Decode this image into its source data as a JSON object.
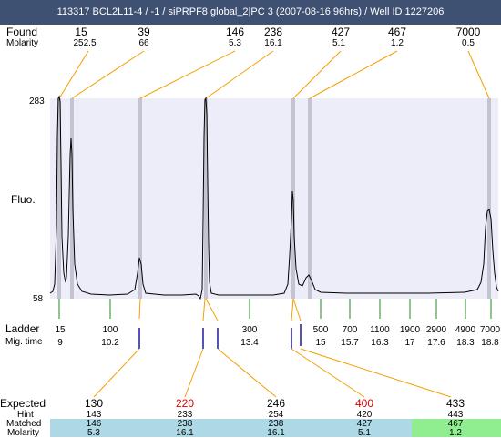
{
  "title": "113317  BCL2L11-4 / -1 / siPRPF8 global_2|PC 3 (2007-08-16 96hrs) / Well ID 1227206",
  "labels": {
    "found": "Found",
    "molarity": "Molarity",
    "fluo": "Fluo.",
    "ladder": "Ladder",
    "mig_time": "Mig. time",
    "expected": "Expected",
    "hint": "Hint",
    "matched": "Matched",
    "molarity_bottom": "Molarity"
  },
  "y_axis": {
    "top": "283",
    "bottom": "58"
  },
  "found_peaks": [
    {
      "size": "15",
      "molarity": "252.5"
    },
    {
      "size": "39",
      "molarity": "66"
    },
    {
      "size": "146",
      "molarity": "5.3"
    },
    {
      "size": "238",
      "molarity": "16.1"
    },
    {
      "size": "427",
      "molarity": "5.1"
    },
    {
      "size": "467",
      "molarity": "1.2"
    },
    {
      "size": "7000",
      "molarity": "0.5"
    }
  ],
  "ladder": [
    {
      "size": "15",
      "time": "9"
    },
    {
      "size": "100",
      "time": "10.2"
    },
    {
      "size": "300",
      "time": "13.4"
    },
    {
      "size": "500",
      "time": "15"
    },
    {
      "size": "700",
      "time": "15.7"
    },
    {
      "size": "1100",
      "time": "16.3"
    },
    {
      "size": "1900",
      "time": "17"
    },
    {
      "size": "2900",
      "time": "17.6"
    },
    {
      "size": "4900",
      "time": "18.3"
    },
    {
      "size": "7000",
      "time": "18.8"
    }
  ],
  "expected": [
    {
      "expected": "130",
      "hint": "143",
      "matched": "146",
      "molarity": "5.3",
      "highlight": false
    },
    {
      "expected": "220",
      "hint": "233",
      "matched": "238",
      "molarity": "16.1",
      "highlight": true
    },
    {
      "expected": "246",
      "hint": "254",
      "matched": "238",
      "molarity": "16.1",
      "highlight": false
    },
    {
      "expected": "400",
      "hint": "420",
      "matched": "427",
      "molarity": "5.1",
      "highlight": true
    },
    {
      "expected": "433",
      "hint": "443",
      "matched": "467",
      "molarity": "1.2",
      "highlight": false
    }
  ],
  "colors": {
    "title_bg": "#3f5173",
    "plot_bg": "#ededfa",
    "peak_band": "#c0c0cc",
    "connector": "#f5a000",
    "ladder_tick": "#228b22",
    "found_tick": "#1a1aa0",
    "highlight_text": "#dd0000",
    "matched_row": "#add8e6",
    "matched_row_last": "#90ee90"
  }
}
